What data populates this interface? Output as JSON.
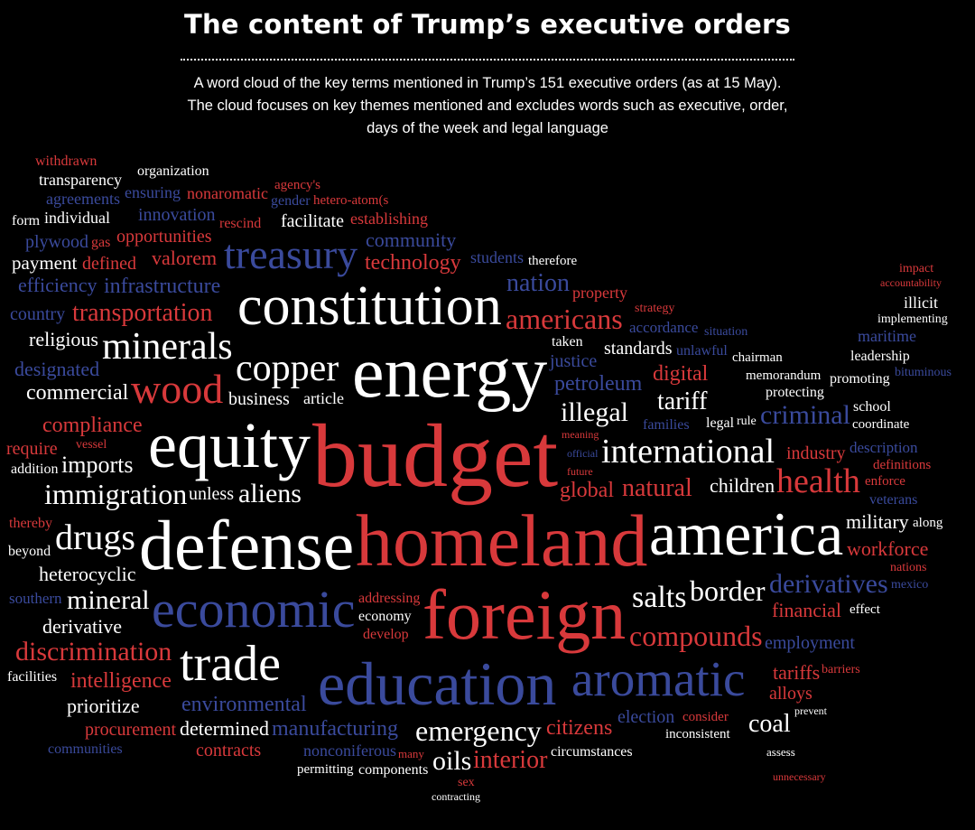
{
  "header": {
    "title": "The content of Trump’s executive orders",
    "subtitle_lines": [
      "A word cloud of the key terms mentioned in Trump’s 151 executive orders (as at 15 May).",
      "The cloud focuses on key themes mentioned and excludes words such as executive, order,",
      "days of the week and legal language"
    ]
  },
  "colors": {
    "background": "#000000",
    "red": "#d8393b",
    "blue": "#3a4a9c",
    "white": "#ffffff"
  },
  "cloud": {
    "words": [
      {
        "text": "budget",
        "color": "red"
      },
      {
        "text": "homeland",
        "color": "red"
      },
      {
        "text": "defense",
        "color": "white"
      },
      {
        "text": "energy",
        "color": "white"
      },
      {
        "text": "constitution",
        "color": "white"
      },
      {
        "text": "equity",
        "color": "white"
      },
      {
        "text": "economic",
        "color": "blue"
      },
      {
        "text": "foreign",
        "color": "red"
      },
      {
        "text": "america",
        "color": "white"
      },
      {
        "text": "education",
        "color": "blue"
      },
      {
        "text": "aromatic",
        "color": "blue"
      },
      {
        "text": "trade",
        "color": "white"
      },
      {
        "text": "treasury",
        "color": "blue"
      },
      {
        "text": "minerals",
        "color": "white"
      },
      {
        "text": "copper",
        "color": "white"
      },
      {
        "text": "wood",
        "color": "red"
      },
      {
        "text": "drugs",
        "color": "white"
      },
      {
        "text": "immigration",
        "color": "white"
      },
      {
        "text": "international",
        "color": "white"
      },
      {
        "text": "health",
        "color": "red"
      },
      {
        "text": "americans",
        "color": "red"
      },
      {
        "text": "nation",
        "color": "blue"
      },
      {
        "text": "illegal",
        "color": "white"
      },
      {
        "text": "aliens",
        "color": "white"
      },
      {
        "text": "salts",
        "color": "white"
      },
      {
        "text": "border",
        "color": "white"
      },
      {
        "text": "derivatives",
        "color": "blue"
      },
      {
        "text": "compounds",
        "color": "red"
      },
      {
        "text": "emergency",
        "color": "white"
      },
      {
        "text": "interior",
        "color": "red"
      },
      {
        "text": "oils",
        "color": "white"
      },
      {
        "text": "coal",
        "color": "white"
      },
      {
        "text": "tariff",
        "color": "white"
      },
      {
        "text": "criminal",
        "color": "blue"
      },
      {
        "text": "petroleum",
        "color": "blue"
      },
      {
        "text": "justice",
        "color": "blue"
      },
      {
        "text": "digital",
        "color": "red"
      },
      {
        "text": "natural",
        "color": "red"
      },
      {
        "text": "industry",
        "color": "red"
      },
      {
        "text": "children",
        "color": "white"
      },
      {
        "text": "military",
        "color": "white"
      },
      {
        "text": "workforce",
        "color": "red"
      },
      {
        "text": "financial",
        "color": "red"
      },
      {
        "text": "tariffs",
        "color": "red"
      },
      {
        "text": "alloys",
        "color": "red"
      },
      {
        "text": "citizens",
        "color": "red"
      },
      {
        "text": "global",
        "color": "red"
      },
      {
        "text": "environmental",
        "color": "blue"
      },
      {
        "text": "intelligence",
        "color": "red"
      },
      {
        "text": "manufacturing",
        "color": "blue"
      },
      {
        "text": "mineral",
        "color": "white"
      },
      {
        "text": "discrimination",
        "color": "red"
      },
      {
        "text": "transportation",
        "color": "red"
      },
      {
        "text": "compliance",
        "color": "red"
      },
      {
        "text": "technology",
        "color": "red"
      },
      {
        "text": "infrastructure",
        "color": "blue"
      },
      {
        "text": "opportunities",
        "color": "red"
      },
      {
        "text": "employment",
        "color": "blue"
      },
      {
        "text": "election",
        "color": "blue"
      },
      {
        "text": "procurement",
        "color": "red"
      },
      {
        "text": "contracts",
        "color": "red"
      },
      {
        "text": "heterocyclic",
        "color": "white"
      },
      {
        "text": "commercial",
        "color": "white"
      },
      {
        "text": "imports",
        "color": "white"
      },
      {
        "text": "prioritize",
        "color": "white"
      },
      {
        "text": "illicit",
        "color": "white"
      },
      {
        "text": "maritime",
        "color": "blue"
      },
      {
        "text": "leadership",
        "color": "white"
      },
      {
        "text": "promoting",
        "color": "white"
      },
      {
        "text": "protecting",
        "color": "white"
      },
      {
        "text": "memorandum",
        "color": "white"
      },
      {
        "text": "circumstances",
        "color": "white"
      },
      {
        "text": "accordance",
        "color": "blue"
      },
      {
        "text": "description",
        "color": "blue"
      },
      {
        "text": "veterans",
        "color": "blue"
      },
      {
        "text": "religious",
        "color": "white"
      },
      {
        "text": "payment",
        "color": "white"
      },
      {
        "text": "individual",
        "color": "white"
      },
      {
        "text": "business",
        "color": "white"
      },
      {
        "text": "derivative",
        "color": "white"
      },
      {
        "text": "determined",
        "color": "white"
      },
      {
        "text": "community",
        "color": "blue"
      },
      {
        "text": "designated",
        "color": "blue"
      },
      {
        "text": "efficiency",
        "color": "blue"
      },
      {
        "text": "country",
        "color": "blue"
      },
      {
        "text": "agreements",
        "color": "blue"
      },
      {
        "text": "innovation",
        "color": "blue"
      },
      {
        "text": "ensuring",
        "color": "blue"
      },
      {
        "text": "valorem",
        "color": "red"
      },
      {
        "text": "facilitate",
        "color": "white"
      },
      {
        "text": "article",
        "color": "white"
      },
      {
        "text": "nonaromatic",
        "color": "red"
      },
      {
        "text": "establishing",
        "color": "red"
      },
      {
        "text": "require",
        "color": "red"
      },
      {
        "text": "defined",
        "color": "red"
      },
      {
        "text": "plywood",
        "color": "blue"
      },
      {
        "text": "organization",
        "color": "white"
      },
      {
        "text": "form",
        "color": "white"
      },
      {
        "text": "gas",
        "color": "red"
      },
      {
        "text": "withdrawn",
        "color": "red"
      },
      {
        "text": "rescind",
        "color": "red"
      },
      {
        "text": "hetero-atom(s",
        "color": "red"
      },
      {
        "text": "property",
        "color": "red"
      },
      {
        "text": "students",
        "color": "blue"
      },
      {
        "text": "families",
        "color": "blue"
      },
      {
        "text": "standards",
        "color": "white"
      },
      {
        "text": "nonconiferous",
        "color": "blue"
      },
      {
        "text": "addressing",
        "color": "red"
      },
      {
        "text": "chairman",
        "color": "white"
      },
      {
        "text": "components",
        "color": "white"
      },
      {
        "text": "consider",
        "color": "red"
      },
      {
        "text": "inconsistent",
        "color": "white"
      },
      {
        "text": "permitting",
        "color": "white"
      },
      {
        "text": "economy",
        "color": "white"
      },
      {
        "text": "facilities",
        "color": "white"
      },
      {
        "text": "communities",
        "color": "blue"
      },
      {
        "text": "transparency",
        "color": "white"
      },
      {
        "text": "beyond",
        "color": "white"
      },
      {
        "text": "develop",
        "color": "red"
      },
      {
        "text": "unless",
        "color": "white"
      },
      {
        "text": "enforce",
        "color": "red"
      },
      {
        "text": "definitions",
        "color": "red"
      },
      {
        "text": "along",
        "color": "white"
      },
      {
        "text": "effect",
        "color": "white"
      },
      {
        "text": "taken",
        "color": "white"
      },
      {
        "text": "unlawful",
        "color": "blue"
      },
      {
        "text": "school",
        "color": "white"
      },
      {
        "text": "impact",
        "color": "red"
      },
      {
        "text": "accountability",
        "color": "red"
      },
      {
        "text": "implementing",
        "color": "white"
      },
      {
        "text": "legal",
        "color": "white"
      },
      {
        "text": "assess",
        "color": "white"
      },
      {
        "text": "unnecessary",
        "color": "red"
      },
      {
        "text": "sex",
        "color": "red"
      },
      {
        "text": "contracting",
        "color": "white"
      },
      {
        "text": "many",
        "color": "red"
      },
      {
        "text": "southern",
        "color": "blue"
      },
      {
        "text": "addition",
        "color": "white"
      },
      {
        "text": "thereby",
        "color": "red"
      },
      {
        "text": "agency's",
        "color": "red"
      },
      {
        "text": "gender",
        "color": "blue"
      },
      {
        "text": "therefore",
        "color": "white"
      },
      {
        "text": "prevent",
        "color": "white"
      },
      {
        "text": "nations",
        "color": "red"
      },
      {
        "text": "coordinate",
        "color": "white"
      },
      {
        "text": "mexico",
        "color": "blue"
      },
      {
        "text": "situation",
        "color": "blue"
      },
      {
        "text": "vessel",
        "color": "red"
      },
      {
        "text": "strategy",
        "color": "red"
      },
      {
        "text": "bituminous",
        "color": "blue"
      },
      {
        "text": "rule",
        "color": "white"
      },
      {
        "text": "barriers",
        "color": "red"
      },
      {
        "text": "future",
        "color": "red"
      },
      {
        "text": "official",
        "color": "blue"
      },
      {
        "text": "meaning",
        "color": "red"
      }
    ]
  }
}
